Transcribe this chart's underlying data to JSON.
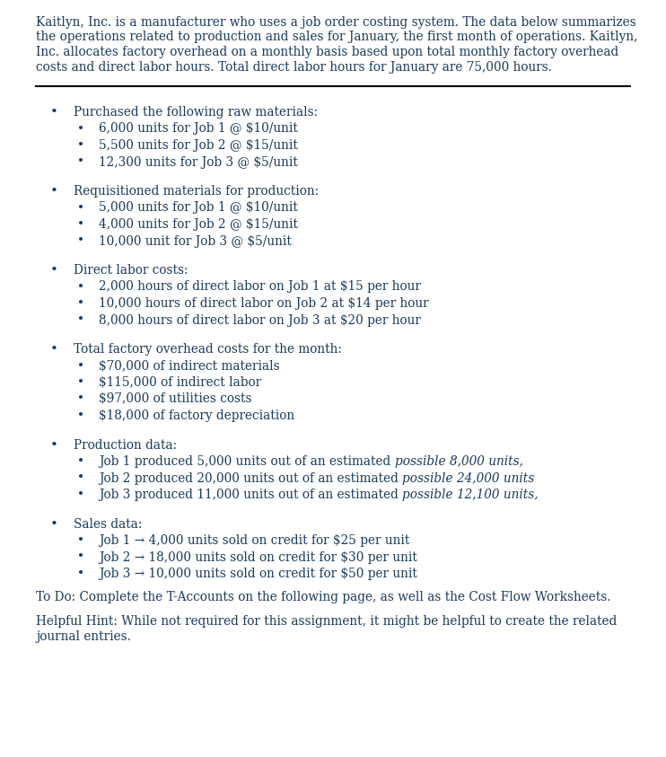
{
  "bg_color": "#ffffff",
  "text_color": "#1a3a5c",
  "intro_text_lines": [
    "Kaitlyn, Inc. is a manufacturer who uses a job order costing system. The data below summarizes",
    "the operations related to production and sales for January, the first month of operations. Kaitlyn,",
    "Inc. allocates factory overhead on a monthly basis based upon total monthly factory overhead",
    "costs and direct labor hours. Total direct labor hours for January are 75,000 hours."
  ],
  "sections": [
    {
      "level": 1,
      "text": "Purchased the following raw materials:",
      "after_gap": false
    },
    {
      "level": 2,
      "text": "6,000 units for Job 1 @ $10/unit",
      "after_gap": false
    },
    {
      "level": 2,
      "text": "5,500 units for Job 2 @ $15/unit",
      "after_gap": false
    },
    {
      "level": 2,
      "text": "12,300 units for Job 3 @ $5/unit",
      "after_gap": true
    },
    {
      "level": 1,
      "text": "Requisitioned materials for production:",
      "after_gap": false
    },
    {
      "level": 2,
      "text": "5,000 units for Job 1 @ $10/unit",
      "after_gap": false
    },
    {
      "level": 2,
      "text": "4,000 units for Job 2 @ $15/unit",
      "after_gap": false
    },
    {
      "level": 2,
      "text": "10,000 unit for Job 3 @ $5/unit",
      "after_gap": true
    },
    {
      "level": 1,
      "text": "Direct labor costs:",
      "after_gap": false
    },
    {
      "level": 2,
      "text": "2,000 hours of direct labor on Job 1 at $15 per hour",
      "after_gap": false
    },
    {
      "level": 2,
      "text": "10,000 hours of direct labor on Job 2 at $14 per hour",
      "after_gap": false
    },
    {
      "level": 2,
      "text": "8,000 hours of direct labor on Job 3 at $20 per hour",
      "after_gap": true
    },
    {
      "level": 1,
      "text": "Total factory overhead costs for the month:",
      "after_gap": false
    },
    {
      "level": 2,
      "text": "$70,000 of indirect materials",
      "after_gap": false
    },
    {
      "level": 2,
      "text": "$115,000 of indirect labor",
      "after_gap": false
    },
    {
      "level": 2,
      "text": "$97,000 of utilities costs",
      "after_gap": false
    },
    {
      "level": 2,
      "text": "$18,000 of factory depreciation",
      "after_gap": true
    },
    {
      "level": 1,
      "text": "Production data:",
      "after_gap": false
    },
    {
      "level": 2,
      "text": "Job 1 produced 5,000 units out of an estimated ",
      "italic_suffix": "possible 8,000 units,",
      "after_gap": false
    },
    {
      "level": 2,
      "text": "Job 2 produced 20,000 units out of an estimated ",
      "italic_suffix": "possible 24,000 units",
      "after_gap": false
    },
    {
      "level": 2,
      "text": "Job 3 produced 11,000 units out of an estimated ",
      "italic_suffix": "possible 12,100 units,",
      "after_gap": true
    },
    {
      "level": 1,
      "text": "Sales data:",
      "after_gap": false
    },
    {
      "level": 2,
      "text": "Job 1 → 4,000 units sold on credit for $25 per unit",
      "after_gap": false
    },
    {
      "level": 2,
      "text": "Job 2 → 18,000 units sold on credit for $30 per unit",
      "after_gap": false
    },
    {
      "level": 2,
      "text": "Job 3 → 10,000 units sold on credit for $50 per unit",
      "after_gap": false
    }
  ],
  "todo_text": "To Do: Complete the T-Accounts on the following page, as well as the Cost Flow Worksheets.",
  "hint_text_lines": [
    "Helpful Hint: While not required for this assignment, it might be helpful to create the related",
    "journal entries."
  ],
  "font_family": "DejaVu Serif",
  "intro_fontsize": 9.8,
  "body_fontsize": 9.8
}
